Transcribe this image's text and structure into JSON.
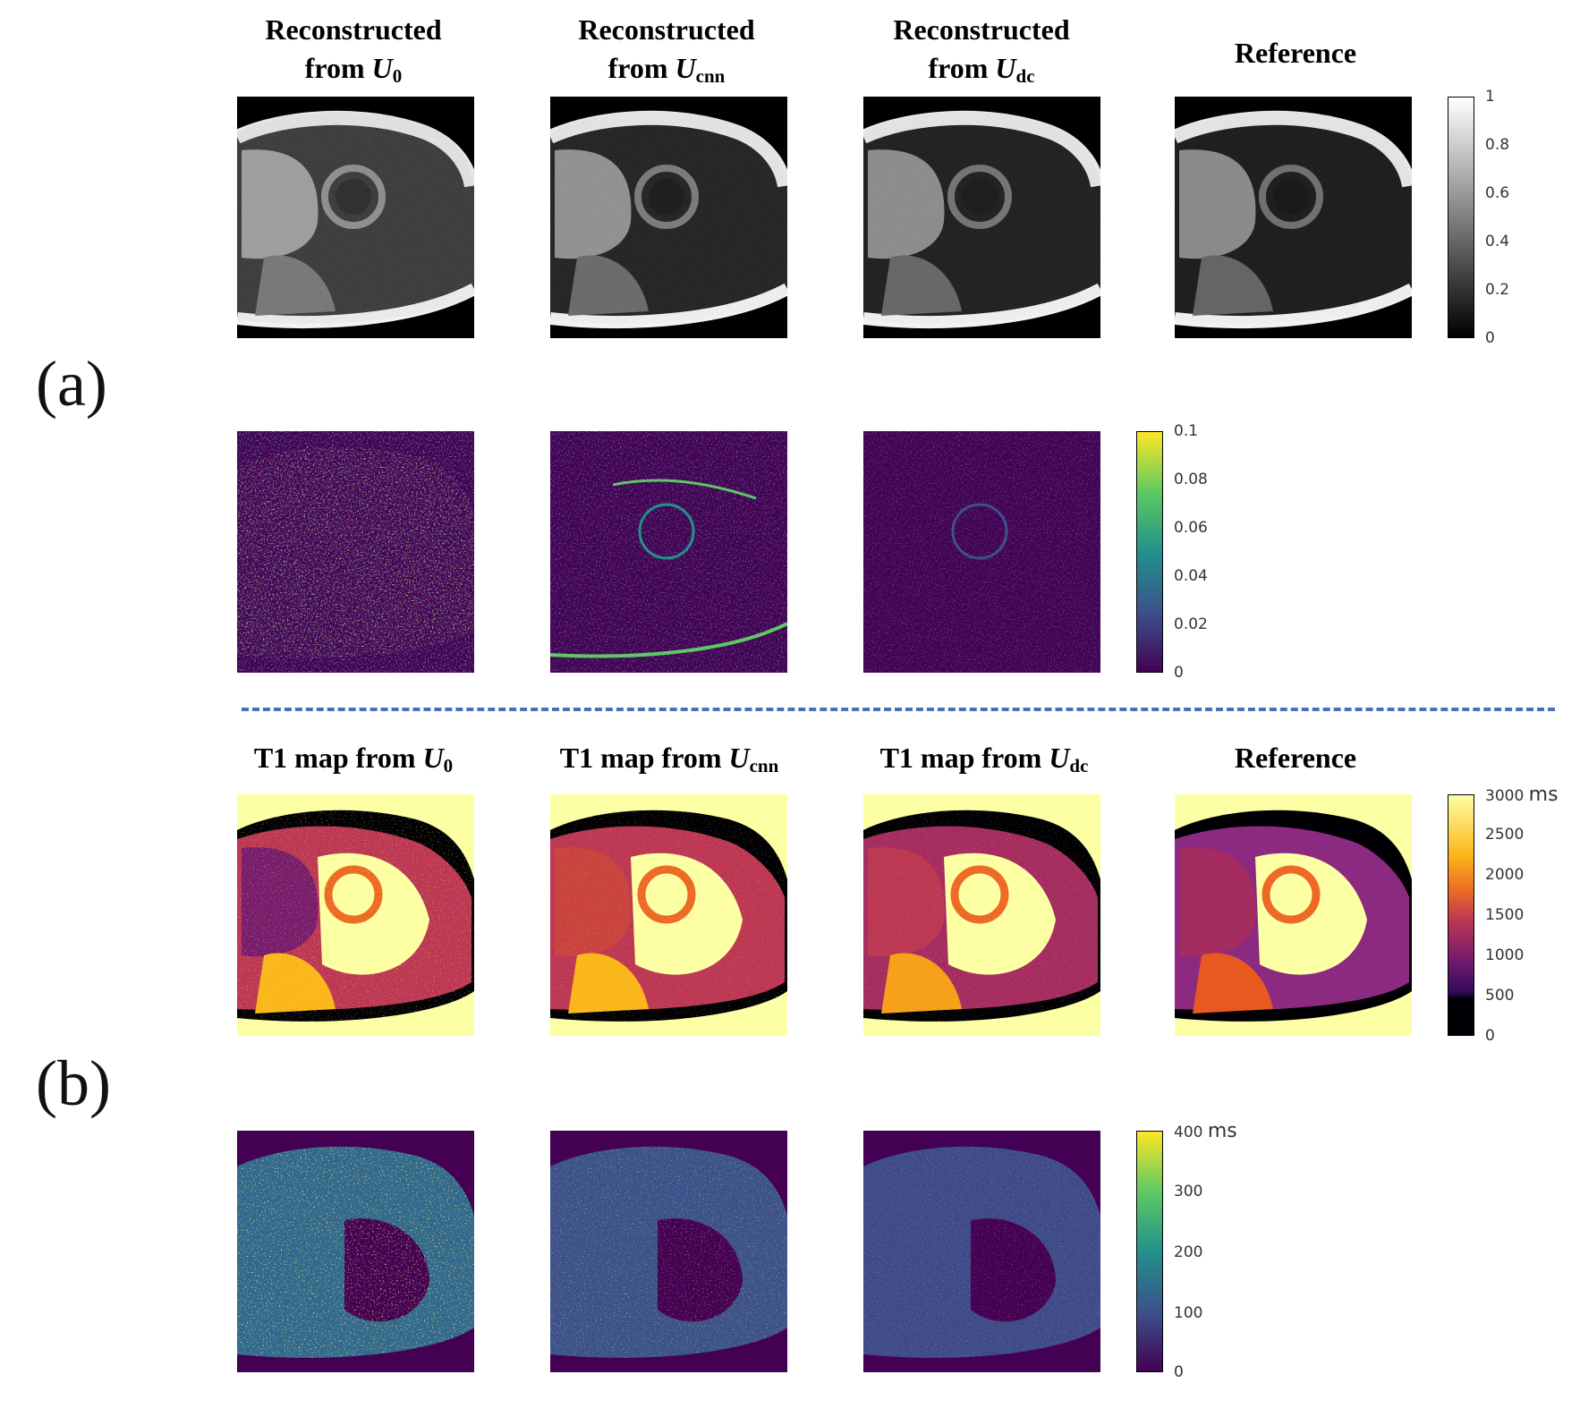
{
  "figure": {
    "row_labels": {
      "a": "(a)",
      "b": "(b)"
    },
    "section_a": {
      "titles": [
        {
          "line1": "Reconstructed",
          "line2_prefix": "from ",
          "var": "U",
          "sub": "0"
        },
        {
          "line1": "Reconstructed",
          "line2_prefix": "from ",
          "var": "U",
          "sub": "cnn"
        },
        {
          "line1": "Reconstructed",
          "line2_prefix": "from ",
          "var": "U",
          "sub": "dc"
        },
        {
          "line1": "Reference"
        }
      ],
      "gray_colorbar": {
        "ticks": [
          "1",
          "0.8",
          "0.6",
          "0.4",
          "0.2",
          "0"
        ]
      },
      "error_colorbar": {
        "ticks": [
          "0.1",
          "0.08",
          "0.06",
          "0.04",
          "0.02",
          "0"
        ]
      }
    },
    "section_b": {
      "titles": [
        {
          "prefix": "T1 map from ",
          "var": "U",
          "sub": "0"
        },
        {
          "prefix": "T1 map from ",
          "var": "U",
          "sub": "cnn"
        },
        {
          "prefix": "T1 map from ",
          "var": "U",
          "sub": "dc"
        },
        {
          "prefix": "Reference"
        }
      ],
      "t1_colorbar": {
        "ticks": [
          "3000",
          "2500",
          "2000",
          "1500",
          "1000",
          "500",
          "0"
        ],
        "unit": "ms"
      },
      "t1_error_colorbar": {
        "ticks": [
          "400",
          "300",
          "200",
          "100",
          "0"
        ],
        "unit": "ms"
      }
    },
    "colors": {
      "divider": "#4a6fba",
      "viridis_top": "#fde725",
      "viridis_bottom": "#440154",
      "inferno_top": "#fcffa4",
      "inferno_bottom": "#000004"
    }
  }
}
